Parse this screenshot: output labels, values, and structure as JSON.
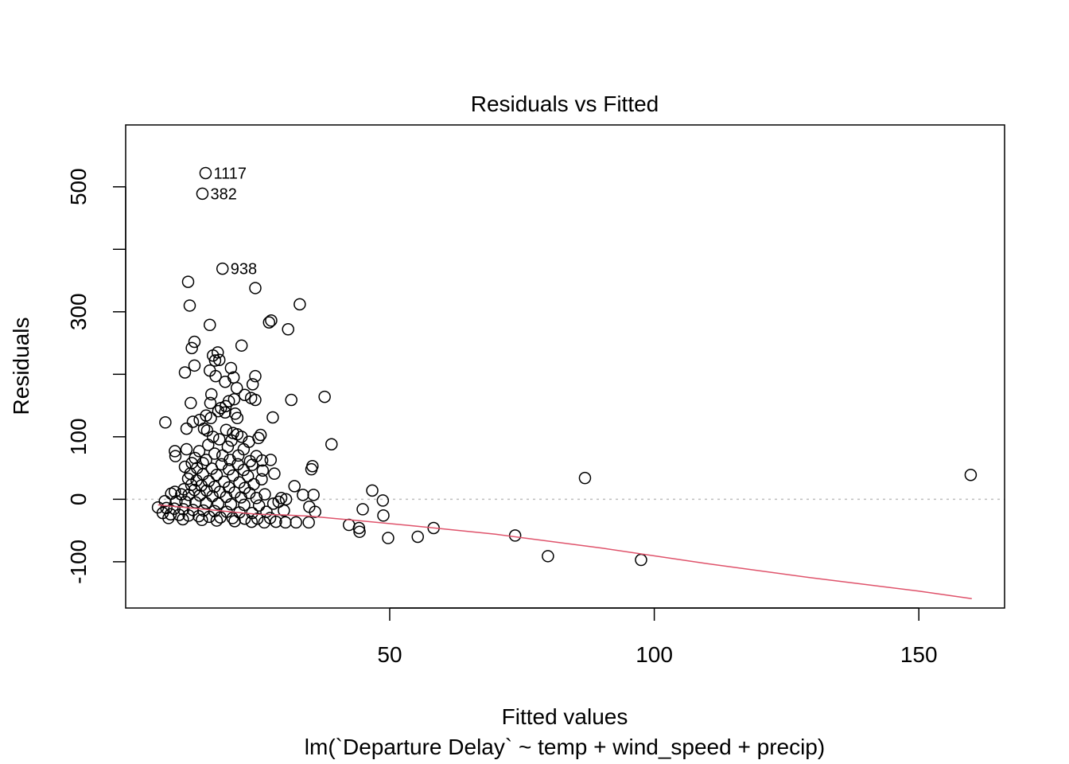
{
  "chart_data": {
    "type": "scatter",
    "title": "Residuals vs Fitted",
    "xlabel": "Fitted values",
    "subtitle": "lm(`Departure Delay` ~ temp + wind_speed + precip)",
    "ylabel": "Residuals",
    "xlim": [
      0.1,
      166.2
    ],
    "ylim": [
      -174,
      599
    ],
    "x_ticks": [
      50,
      100,
      150
    ],
    "y_ticks": [
      -100,
      0,
      100,
      300,
      500
    ],
    "y_minor_ticks": [
      -100,
      0,
      100,
      200,
      300,
      400,
      500
    ],
    "grid": false,
    "reference_line": {
      "y": 0,
      "style": "dotted",
      "color": "#bebebe"
    },
    "colors": {
      "points": "#000000",
      "smooth": "#df536b",
      "reference": "#bebebe"
    },
    "points": [
      {
        "x": 15.2,
        "y": 522,
        "label": "1117"
      },
      {
        "x": 14.6,
        "y": 489,
        "label": "382"
      },
      {
        "x": 18.4,
        "y": 369,
        "label": "938"
      },
      {
        "x": 11.9,
        "y": 348
      },
      {
        "x": 24.6,
        "y": 338
      },
      {
        "x": 12.2,
        "y": 310
      },
      {
        "x": 33.0,
        "y": 312
      },
      {
        "x": 27.2,
        "y": 283
      },
      {
        "x": 27.6,
        "y": 286
      },
      {
        "x": 16.0,
        "y": 279
      },
      {
        "x": 30.8,
        "y": 272
      },
      {
        "x": 13.1,
        "y": 252
      },
      {
        "x": 22.0,
        "y": 246
      },
      {
        "x": 12.6,
        "y": 242
      },
      {
        "x": 16.6,
        "y": 230
      },
      {
        "x": 17.5,
        "y": 235
      },
      {
        "x": 17.0,
        "y": 222
      },
      {
        "x": 17.8,
        "y": 223
      },
      {
        "x": 13.1,
        "y": 214
      },
      {
        "x": 11.3,
        "y": 203
      },
      {
        "x": 20.0,
        "y": 210
      },
      {
        "x": 16.0,
        "y": 206
      },
      {
        "x": 20.5,
        "y": 195
      },
      {
        "x": 17.1,
        "y": 197
      },
      {
        "x": 24.6,
        "y": 197
      },
      {
        "x": 18.9,
        "y": 188
      },
      {
        "x": 24.1,
        "y": 184
      },
      {
        "x": 21.1,
        "y": 178
      },
      {
        "x": 16.3,
        "y": 168
      },
      {
        "x": 23.8,
        "y": 162
      },
      {
        "x": 24.6,
        "y": 159
      },
      {
        "x": 22.6,
        "y": 167
      },
      {
        "x": 20.6,
        "y": 160
      },
      {
        "x": 19.6,
        "y": 157
      },
      {
        "x": 12.4,
        "y": 154
      },
      {
        "x": 16.1,
        "y": 154
      },
      {
        "x": 18.1,
        "y": 146
      },
      {
        "x": 17.6,
        "y": 141
      },
      {
        "x": 19.0,
        "y": 149
      },
      {
        "x": 20.8,
        "y": 137
      },
      {
        "x": 21.2,
        "y": 130
      },
      {
        "x": 18.9,
        "y": 139
      },
      {
        "x": 15.3,
        "y": 134
      },
      {
        "x": 16.2,
        "y": 130
      },
      {
        "x": 12.8,
        "y": 124
      },
      {
        "x": 14.1,
        "y": 127
      },
      {
        "x": 7.6,
        "y": 123
      },
      {
        "x": 27.9,
        "y": 131
      },
      {
        "x": 31.4,
        "y": 159
      },
      {
        "x": 37.7,
        "y": 164
      },
      {
        "x": 14.9,
        "y": 113
      },
      {
        "x": 15.5,
        "y": 110
      },
      {
        "x": 11.6,
        "y": 113
      },
      {
        "x": 19.1,
        "y": 111
      },
      {
        "x": 20.4,
        "y": 106
      },
      {
        "x": 21.2,
        "y": 104
      },
      {
        "x": 22.0,
        "y": 100
      },
      {
        "x": 25.6,
        "y": 103
      },
      {
        "x": 25.2,
        "y": 98
      },
      {
        "x": 16.6,
        "y": 100
      },
      {
        "x": 17.8,
        "y": 96
      },
      {
        "x": 20.1,
        "y": 94
      },
      {
        "x": 23.4,
        "y": 92
      },
      {
        "x": 39.0,
        "y": 88
      },
      {
        "x": 15.7,
        "y": 87
      },
      {
        "x": 19.4,
        "y": 84
      },
      {
        "x": 22.4,
        "y": 80
      },
      {
        "x": 11.6,
        "y": 80
      },
      {
        "x": 14.0,
        "y": 77
      },
      {
        "x": 9.4,
        "y": 77
      },
      {
        "x": 16.9,
        "y": 73
      },
      {
        "x": 18.4,
        "y": 70
      },
      {
        "x": 21.4,
        "y": 70
      },
      {
        "x": 24.8,
        "y": 69
      },
      {
        "x": 9.5,
        "y": 69
      },
      {
        "x": 13.2,
        "y": 66
      },
      {
        "x": 15.3,
        "y": 63
      },
      {
        "x": 19.8,
        "y": 63
      },
      {
        "x": 23.6,
        "y": 61
      },
      {
        "x": 25.9,
        "y": 62
      },
      {
        "x": 27.5,
        "y": 63
      },
      {
        "x": 12.6,
        "y": 58
      },
      {
        "x": 14.7,
        "y": 58
      },
      {
        "x": 18.2,
        "y": 56
      },
      {
        "x": 21.3,
        "y": 56
      },
      {
        "x": 24.0,
        "y": 55
      },
      {
        "x": 35.4,
        "y": 53
      },
      {
        "x": 35.2,
        "y": 48
      },
      {
        "x": 11.3,
        "y": 52
      },
      {
        "x": 13.6,
        "y": 50
      },
      {
        "x": 16.4,
        "y": 49
      },
      {
        "x": 19.6,
        "y": 48
      },
      {
        "x": 22.4,
        "y": 47
      },
      {
        "x": 26.0,
        "y": 46
      },
      {
        "x": 28.2,
        "y": 41
      },
      {
        "x": 12.3,
        "y": 41
      },
      {
        "x": 14.7,
        "y": 40
      },
      {
        "x": 17.3,
        "y": 39
      },
      {
        "x": 20.4,
        "y": 38
      },
      {
        "x": 23.2,
        "y": 37
      },
      {
        "x": 25.8,
        "y": 32
      },
      {
        "x": 86.9,
        "y": 34
      },
      {
        "x": 159.8,
        "y": 39
      },
      {
        "x": 11.9,
        "y": 33
      },
      {
        "x": 13.5,
        "y": 30
      },
      {
        "x": 15.8,
        "y": 29
      },
      {
        "x": 18.7,
        "y": 28
      },
      {
        "x": 21.6,
        "y": 27
      },
      {
        "x": 24.3,
        "y": 24
      },
      {
        "x": 12.5,
        "y": 23
      },
      {
        "x": 14.4,
        "y": 22
      },
      {
        "x": 16.9,
        "y": 20
      },
      {
        "x": 19.6,
        "y": 19
      },
      {
        "x": 22.6,
        "y": 18
      },
      {
        "x": 32.0,
        "y": 21
      },
      {
        "x": 46.7,
        "y": 14
      },
      {
        "x": 11.1,
        "y": 16
      },
      {
        "x": 13.1,
        "y": 15
      },
      {
        "x": 15.4,
        "y": 14
      },
      {
        "x": 17.9,
        "y": 12
      },
      {
        "x": 20.7,
        "y": 11
      },
      {
        "x": 23.5,
        "y": 10
      },
      {
        "x": 26.4,
        "y": 8
      },
      {
        "x": 33.6,
        "y": 7
      },
      {
        "x": 35.6,
        "y": 7
      },
      {
        "x": 8.7,
        "y": 9
      },
      {
        "x": 9.4,
        "y": 12
      },
      {
        "x": 10.6,
        "y": 8
      },
      {
        "x": 12.0,
        "y": 7
      },
      {
        "x": 14.1,
        "y": 6
      },
      {
        "x": 16.5,
        "y": 5
      },
      {
        "x": 19.1,
        "y": 4
      },
      {
        "x": 21.9,
        "y": 3
      },
      {
        "x": 24.8,
        "y": 2
      },
      {
        "x": 29.5,
        "y": 2
      },
      {
        "x": 30.4,
        "y": 0
      },
      {
        "x": 48.7,
        "y": -2
      },
      {
        "x": 7.5,
        "y": -3
      },
      {
        "x": 9.7,
        "y": -3
      },
      {
        "x": 11.4,
        "y": -4
      },
      {
        "x": 13.3,
        "y": -5
      },
      {
        "x": 15.3,
        "y": -6
      },
      {
        "x": 17.6,
        "y": -7
      },
      {
        "x": 20.0,
        "y": -8
      },
      {
        "x": 22.5,
        "y": -9
      },
      {
        "x": 25.3,
        "y": -10
      },
      {
        "x": 28.0,
        "y": -7
      },
      {
        "x": 29.0,
        "y": -4
      },
      {
        "x": 34.8,
        "y": -12
      },
      {
        "x": 6.2,
        "y": -13
      },
      {
        "x": 7.8,
        "y": -14
      },
      {
        "x": 9.3,
        "y": -15
      },
      {
        "x": 11.0,
        "y": -16
      },
      {
        "x": 12.8,
        "y": -17
      },
      {
        "x": 14.8,
        "y": -18
      },
      {
        "x": 16.9,
        "y": -19
      },
      {
        "x": 19.2,
        "y": -20
      },
      {
        "x": 21.6,
        "y": -21
      },
      {
        "x": 24.0,
        "y": -22
      },
      {
        "x": 26.7,
        "y": -20
      },
      {
        "x": 30.0,
        "y": -18
      },
      {
        "x": 35.9,
        "y": -20
      },
      {
        "x": 44.9,
        "y": -16
      },
      {
        "x": 7.1,
        "y": -22
      },
      {
        "x": 8.6,
        "y": -24
      },
      {
        "x": 10.2,
        "y": -25
      },
      {
        "x": 12.0,
        "y": -26
      },
      {
        "x": 13.9,
        "y": -27
      },
      {
        "x": 15.9,
        "y": -28
      },
      {
        "x": 18.0,
        "y": -29
      },
      {
        "x": 20.3,
        "y": -30
      },
      {
        "x": 22.6,
        "y": -31
      },
      {
        "x": 25.0,
        "y": -31
      },
      {
        "x": 27.4,
        "y": -30
      },
      {
        "x": 48.8,
        "y": -26
      },
      {
        "x": 8.2,
        "y": -30
      },
      {
        "x": 10.9,
        "y": -32
      },
      {
        "x": 14.5,
        "y": -33
      },
      {
        "x": 17.3,
        "y": -34
      },
      {
        "x": 20.7,
        "y": -35
      },
      {
        "x": 23.9,
        "y": -36
      },
      {
        "x": 26.3,
        "y": -37
      },
      {
        "x": 28.5,
        "y": -36
      },
      {
        "x": 30.3,
        "y": -37
      },
      {
        "x": 32.3,
        "y": -37
      },
      {
        "x": 34.7,
        "y": -37
      },
      {
        "x": 42.3,
        "y": -41
      },
      {
        "x": 44.2,
        "y": -46
      },
      {
        "x": 44.3,
        "y": -52
      },
      {
        "x": 58.3,
        "y": -46
      },
      {
        "x": 55.3,
        "y": -60
      },
      {
        "x": 49.7,
        "y": -62
      },
      {
        "x": 73.7,
        "y": -58
      },
      {
        "x": 79.9,
        "y": -91
      },
      {
        "x": 97.5,
        "y": -97
      }
    ],
    "smooth_line": [
      {
        "x": 6.2,
        "y": -9
      },
      {
        "x": 10,
        "y": -12
      },
      {
        "x": 15,
        "y": -16
      },
      {
        "x": 20,
        "y": -20
      },
      {
        "x": 25,
        "y": -24
      },
      {
        "x": 30,
        "y": -25
      },
      {
        "x": 35,
        "y": -27
      },
      {
        "x": 40,
        "y": -31
      },
      {
        "x": 45,
        "y": -35
      },
      {
        "x": 55,
        "y": -43
      },
      {
        "x": 70,
        "y": -56
      },
      {
        "x": 90,
        "y": -78
      },
      {
        "x": 110,
        "y": -103
      },
      {
        "x": 130,
        "y": -126
      },
      {
        "x": 150,
        "y": -147
      },
      {
        "x": 160,
        "y": -159
      }
    ]
  }
}
